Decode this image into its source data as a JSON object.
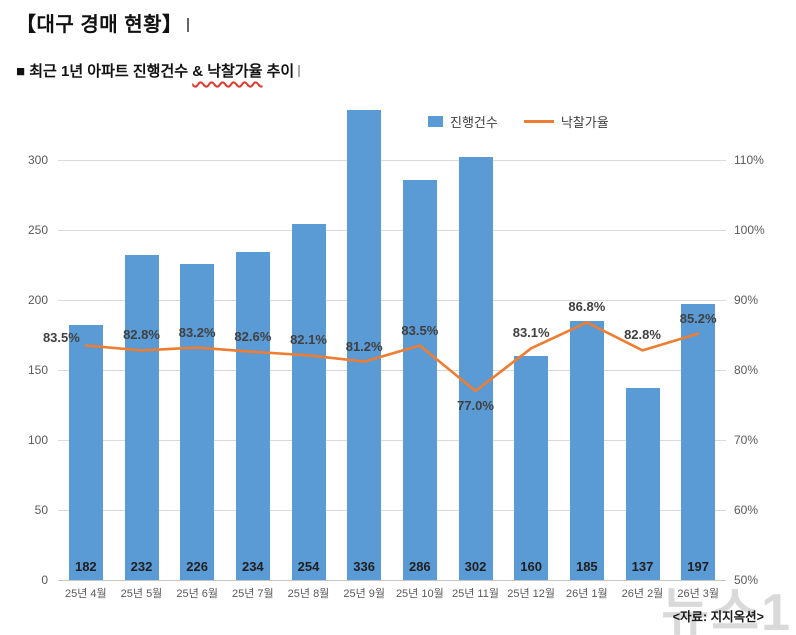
{
  "page": {
    "title": "【대구 경매 현황】",
    "subtitle_pre": "■ 최근 1년 아파트 진행건수 ",
    "subtitle_underlined": "& 낙찰가율",
    "subtitle_post": " 추이",
    "source": "<자료: 지지옥션>",
    "watermark": "뉴스1"
  },
  "chart_data": {
    "type": "combo",
    "title": "최근 1년 아파트 진행건수 & 낙찰가율 추이",
    "categories": [
      "25년 4월",
      "25년 5월",
      "25년 6월",
      "25년 7월",
      "25년 8월",
      "25년 9월",
      "25년 10월",
      "25년 11월",
      "25년 12월",
      "26년 1월",
      "26년 2월",
      "26년 3월"
    ],
    "series": [
      {
        "name": "진행건수",
        "type": "bar",
        "color": "#5B9BD5",
        "axis": "left",
        "values": [
          182,
          232,
          226,
          234,
          254,
          336,
          286,
          302,
          160,
          185,
          137,
          197
        ]
      },
      {
        "name": "낙찰가율",
        "type": "line",
        "color": "#ED7D31",
        "axis": "right",
        "unit": "%",
        "values": [
          83.5,
          82.8,
          83.2,
          82.6,
          82.1,
          81.2,
          83.5,
          77.0,
          83.1,
          86.8,
          82.8,
          85.2
        ]
      }
    ],
    "left_axis": {
      "min": 0,
      "max": 350,
      "step": 50,
      "labels_max": 300
    },
    "right_axis": {
      "min": 50,
      "max": 120,
      "step": 10,
      "labels_max": 110,
      "suffix": "%"
    },
    "grid": true,
    "legend_position": "top",
    "label_positions": [
      "left",
      "above",
      "above",
      "above",
      "above",
      "above",
      "above",
      "below",
      "above",
      "above",
      "above",
      "above"
    ]
  }
}
